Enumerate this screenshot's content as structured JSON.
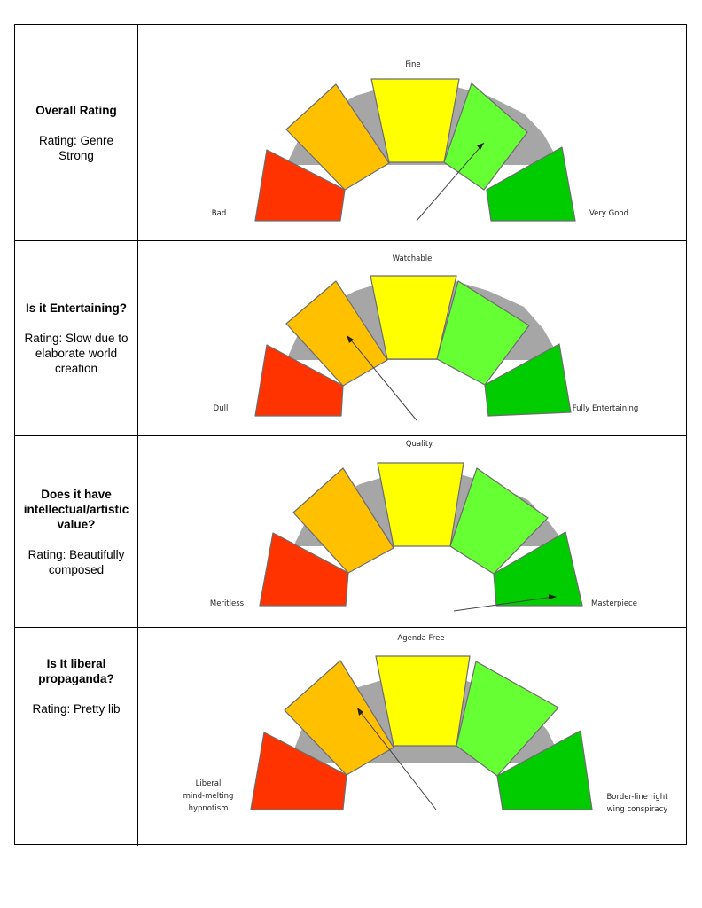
{
  "rows": [
    {
      "question": "Overall Rating",
      "rating": "Rating: Genre Strong",
      "labels": {
        "top": "Fine",
        "left": "Bad",
        "right": "Very Good"
      },
      "segment": "light-green"
    },
    {
      "question": "Is it Entertaining?",
      "rating": "Rating: Slow due to elaborate world creation",
      "labels": {
        "top": "Watchable",
        "left": "Dull",
        "right": "Fully Entertaining"
      },
      "segment": "orange"
    },
    {
      "question": "Does it have intellectual/artistic value?",
      "rating": "Rating: Beautifully composed",
      "labels": {
        "top": "Quality",
        "left": "Meritless",
        "right": "Masterpiece"
      },
      "segment": "dark-green"
    },
    {
      "question": "Is It liberal propaganda?",
      "rating": "Rating: Pretty lib",
      "labels": {
        "top": "Agenda Free",
        "left_lines": [
          "Liberal",
          "mind-melting",
          "hypnotism"
        ],
        "right_lines": [
          "Border-line right",
          "wing conspiracy"
        ]
      },
      "segment": "orange"
    }
  ],
  "colors": {
    "red": "#ff3300",
    "orange": "#ffc000",
    "yellow": "#ffff00",
    "light_green": "#66ff33",
    "dark_green": "#00cc00",
    "ring": "#a6a6a6"
  }
}
